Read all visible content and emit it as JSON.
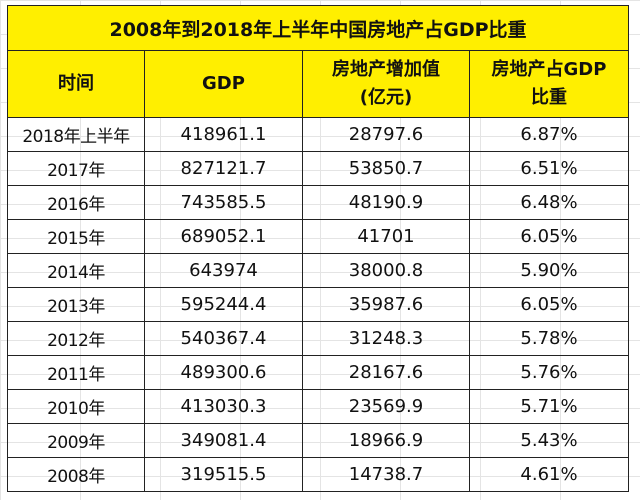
{
  "title": "2008年到2018年上半年中国房地产占GDP比重",
  "table": {
    "header": [
      [
        "时间"
      ],
      [
        "GDP"
      ],
      [
        "房地产增加值",
        "(亿元)"
      ],
      [
        "房地产占GDP",
        "比重"
      ]
    ],
    "rows": [
      [
        "2018年上半年",
        "418961.1",
        "28797.6",
        "6.87%"
      ],
      [
        "2017年",
        "827121.7",
        "53850.7",
        "6.51%"
      ],
      [
        "2016年",
        "743585.5",
        "48190.9",
        "6.48%"
      ],
      [
        "2015年",
        "689052.1",
        "41701",
        "6.05%"
      ],
      [
        "2014年",
        "643974",
        "38000.8",
        "5.90%"
      ],
      [
        "2013年",
        "595244.4",
        "35987.6",
        "6.05%"
      ],
      [
        "2012年",
        "540367.4",
        "31248.3",
        "5.78%"
      ],
      [
        "2011年",
        "489300.6",
        "28167.6",
        "5.76%"
      ],
      [
        "2010年",
        "413030.3",
        "23569.9",
        "5.71%"
      ],
      [
        "2009年",
        "349081.4",
        "18966.9",
        "5.43%"
      ],
      [
        "2008年",
        "319515.5",
        "14738.7",
        "4.61%"
      ]
    ]
  }
}
